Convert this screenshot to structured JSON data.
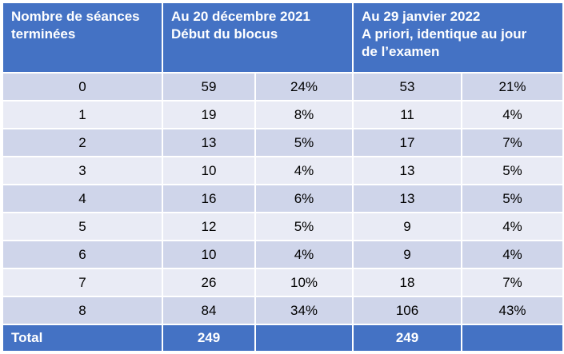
{
  "header": {
    "col1": [
      "Nombre de séances",
      "terminées"
    ],
    "col2": [
      "Au 20 décembre 2021",
      "Début du blocus"
    ],
    "col3": [
      "Au 29 janvier 2022",
      "A priori, identique au jour",
      "de l’examen"
    ]
  },
  "rows": [
    {
      "seances": "0",
      "dec_n": "59",
      "dec_pct": "24%",
      "jan_n": "53",
      "jan_pct": "21%"
    },
    {
      "seances": "1",
      "dec_n": "19",
      "dec_pct": "8%",
      "jan_n": "11",
      "jan_pct": "4%"
    },
    {
      "seances": "2",
      "dec_n": "13",
      "dec_pct": "5%",
      "jan_n": "17",
      "jan_pct": "7%"
    },
    {
      "seances": "3",
      "dec_n": "10",
      "dec_pct": "4%",
      "jan_n": "13",
      "jan_pct": "5%"
    },
    {
      "seances": "4",
      "dec_n": "16",
      "dec_pct": "6%",
      "jan_n": "13",
      "jan_pct": "5%"
    },
    {
      "seances": "5",
      "dec_n": "12",
      "dec_pct": "5%",
      "jan_n": "9",
      "jan_pct": "4%"
    },
    {
      "seances": "6",
      "dec_n": "10",
      "dec_pct": "4%",
      "jan_n": "9",
      "jan_pct": "4%"
    },
    {
      "seances": "7",
      "dec_n": "26",
      "dec_pct": "10%",
      "jan_n": "18",
      "jan_pct": "7%"
    },
    {
      "seances": "8",
      "dec_n": "84",
      "dec_pct": "34%",
      "jan_n": "106",
      "jan_pct": "43%"
    }
  ],
  "footer": {
    "label": "Total",
    "dec_total": "249",
    "jan_total": "249"
  },
  "colors": {
    "header_bg": "#4472c4",
    "row_odd": "#cfd5ea",
    "row_even": "#e9ebf5"
  }
}
